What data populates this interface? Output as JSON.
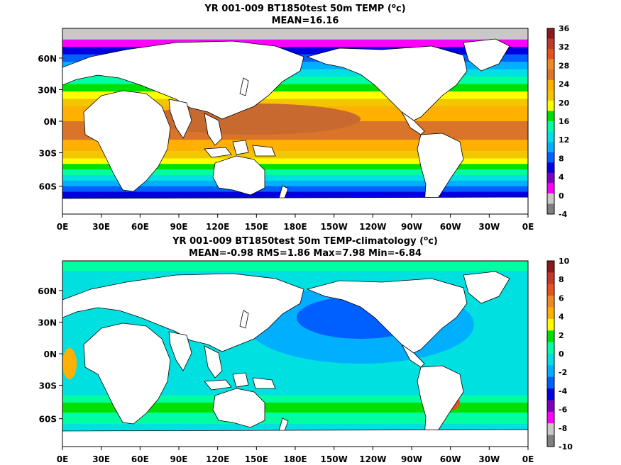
{
  "chart_data": [
    {
      "type": "heatmap",
      "title_main": "YR 001-009 BT1850test 50m TEMP (",
      "title_unit_sup": "o",
      "title_unit_end": "c)",
      "subtitle": "MEAN=16.16",
      "x_ticks": [
        "0E",
        "30E",
        "60E",
        "90E",
        "120E",
        "150E",
        "180E",
        "150W",
        "120W",
        "90W",
        "60W",
        "30W",
        "0E"
      ],
      "y_ticks": [
        "60N",
        "30N",
        "0N",
        "30S",
        "60S"
      ],
      "colorbar": {
        "labels": [
          "36",
          "32",
          "28",
          "24",
          "20",
          "16",
          "12",
          "8",
          "4",
          "0",
          "-4"
        ],
        "colors": [
          "#8b1a1a",
          "#c0392b",
          "#e8501e",
          "#f08a24",
          "#d9742a",
          "#ffb000",
          "#f2c600",
          "#ffff00",
          "#00e000",
          "#00ffa0",
          "#00e0e0",
          "#00b0ff",
          "#0060ff",
          "#0000e0",
          "#8000c0",
          "#ff00ff",
          "#c8c8c8",
          "#808080"
        ]
      },
      "legend_position": "right"
    },
    {
      "type": "heatmap",
      "title_main": "YR 001-009 BT1850test 50m TEMP-climatology (",
      "title_unit_sup": "o",
      "title_unit_end": "c)",
      "subtitle": "MEAN=-0.98   RMS=1.86   Max=7.98   Min=-6.84",
      "x_ticks": [
        "0E",
        "30E",
        "60E",
        "90E",
        "120E",
        "150E",
        "180E",
        "150W",
        "120W",
        "90W",
        "60W",
        "30W",
        "0E"
      ],
      "y_ticks": [
        "60N",
        "30N",
        "0N",
        "30S",
        "60S"
      ],
      "colorbar": {
        "labels": [
          "10",
          "8",
          "6",
          "4",
          "2",
          "0",
          "-2",
          "-4",
          "-6",
          "-8",
          "-10"
        ],
        "colors": [
          "#8b1a1a",
          "#c0392b",
          "#e8501e",
          "#f08a24",
          "#ffb000",
          "#ffff00",
          "#00e000",
          "#00ffa0",
          "#00e0e0",
          "#00b0ff",
          "#0060ff",
          "#0000e0",
          "#8000c0",
          "#ff00ff",
          "#c8c8c8",
          "#808080"
        ]
      },
      "legend_position": "right"
    }
  ]
}
